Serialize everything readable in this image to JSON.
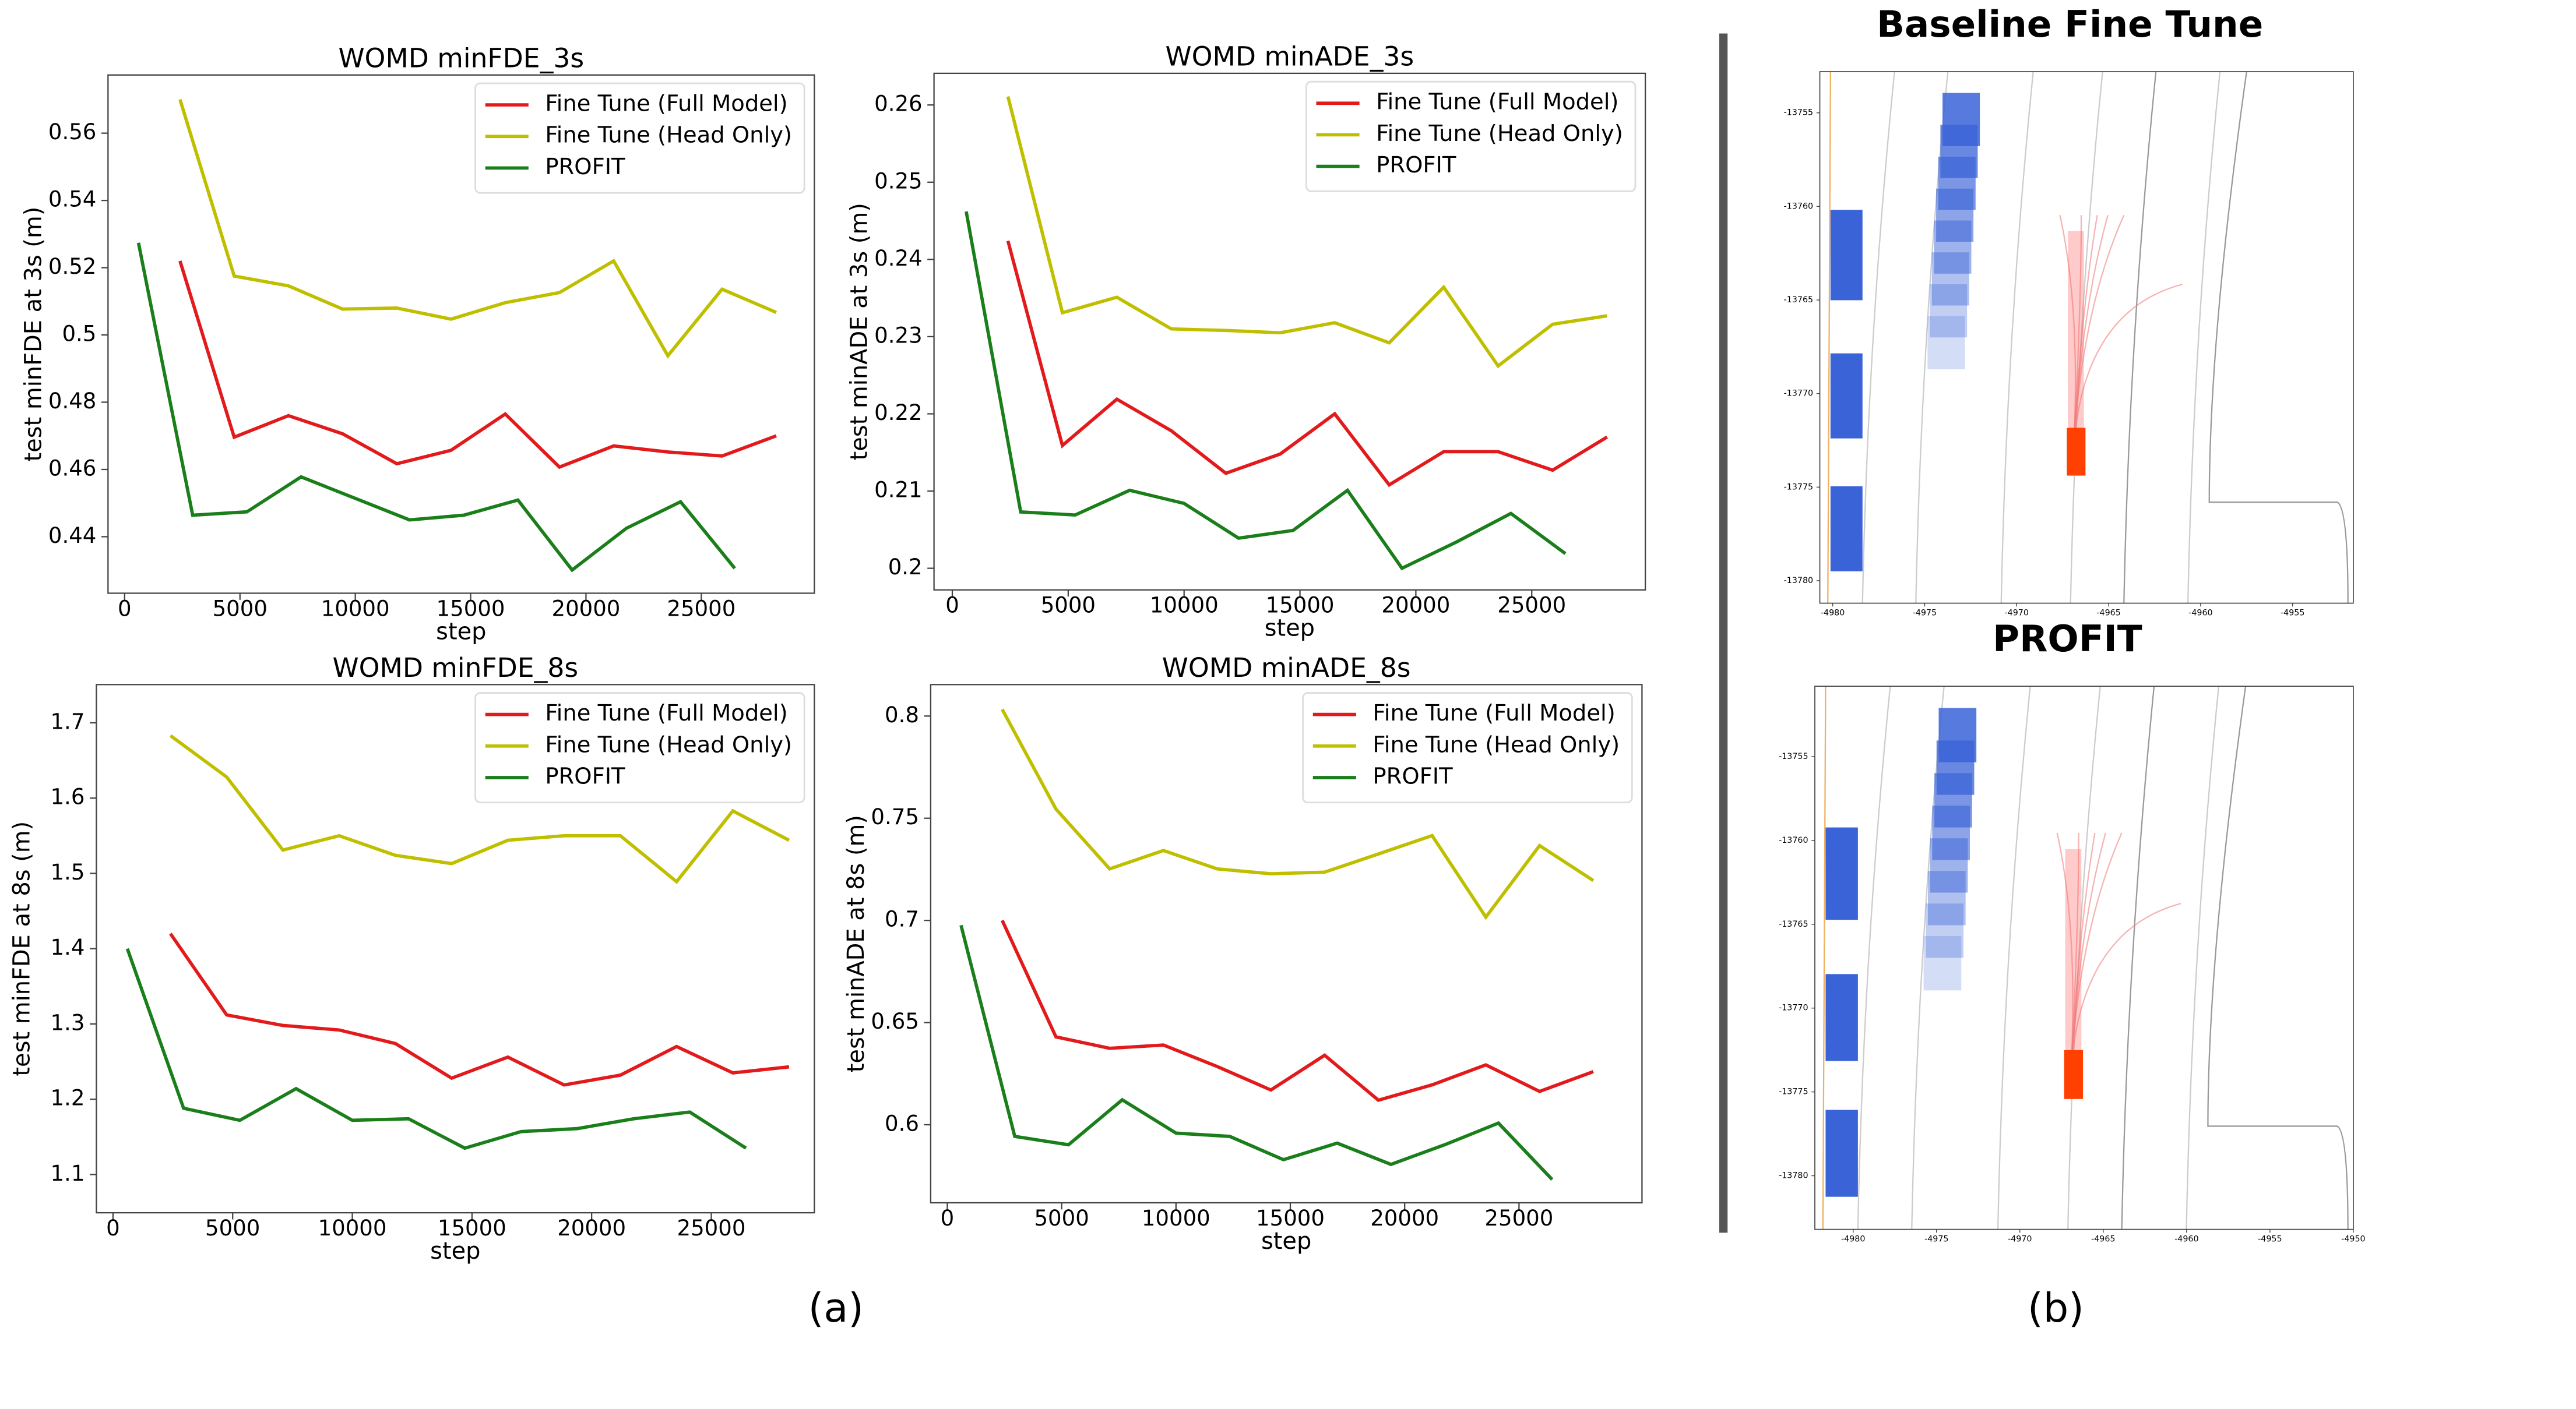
{
  "chart_data": [
    {
      "type": "line",
      "title": "WOMD minFDE_3s",
      "xlabel": "step",
      "ylabel": "test minFDE at 3s (m)",
      "xlim": [
        -720,
        29900
      ],
      "ylim": [
        0.4232,
        0.5773
      ],
      "xticks": [
        0,
        5000,
        10000,
        15000,
        20000,
        25000
      ],
      "yticks": [
        0.44,
        0.46,
        0.48,
        0.5,
        0.52,
        0.54,
        0.56
      ],
      "legend": "upper right",
      "series": [
        {
          "name": "Fine Tune (Full Model)",
          "color": "#e31a1c",
          "x": [
            2400,
            4750,
            7100,
            9450,
            11800,
            14150,
            16500,
            18850,
            21200,
            23550,
            25900,
            28250
          ],
          "values": [
            0.522,
            0.4696,
            0.476,
            0.4706,
            0.4617,
            0.4657,
            0.4765,
            0.4607,
            0.467,
            0.4652,
            0.464,
            0.47
          ]
        },
        {
          "name": "Fine Tune (Head Only)",
          "color": "#bfbf00",
          "x": [
            2400,
            4750,
            7100,
            9450,
            11800,
            14150,
            16500,
            18850,
            21200,
            23550,
            25900,
            28250
          ],
          "values": [
            0.57,
            0.5175,
            0.5146,
            0.5077,
            0.508,
            0.5047,
            0.5096,
            0.5126,
            0.522,
            0.4938,
            0.5136,
            0.5067
          ]
        },
        {
          "name": "PROFIT",
          "color": "#1a7f1a",
          "x": [
            600,
            2950,
            5300,
            7650,
            10000,
            12350,
            14700,
            17050,
            19400,
            21750,
            24100,
            26450
          ],
          "values": [
            0.5274,
            0.4464,
            0.4474,
            0.4578,
            0.4514,
            0.445,
            0.4464,
            0.4509,
            0.4301,
            0.4425,
            0.4504,
            0.4306
          ]
        }
      ]
    },
    {
      "type": "line",
      "title": "WOMD minADE_3s",
      "xlabel": "step",
      "ylabel": "test minADE at 3s (m)",
      "xlim": [
        -790,
        29900
      ],
      "ylim": [
        0.1972,
        0.2641
      ],
      "xticks": [
        0,
        5000,
        10000,
        15000,
        20000,
        25000
      ],
      "yticks": [
        0.2,
        0.21,
        0.22,
        0.23,
        0.24,
        0.25,
        0.26
      ],
      "legend": "upper right",
      "series": [
        {
          "name": "Fine Tune (Full Model)",
          "color": "#e31a1c",
          "x": [
            2400,
            4750,
            7100,
            9450,
            11800,
            14150,
            16500,
            18850,
            21200,
            23550,
            25900,
            28250
          ],
          "values": [
            0.2424,
            0.2159,
            0.2219,
            0.2178,
            0.2123,
            0.2148,
            0.22,
            0.2108,
            0.2151,
            0.2151,
            0.2127,
            0.217
          ]
        },
        {
          "name": "Fine Tune (Head Only)",
          "color": "#bfbf00",
          "x": [
            2400,
            4750,
            7100,
            9450,
            11800,
            14150,
            16500,
            18850,
            21200,
            23550,
            25900,
            28250
          ],
          "values": [
            0.2611,
            0.2331,
            0.2351,
            0.231,
            0.2308,
            0.2305,
            0.2318,
            0.2292,
            0.2364,
            0.2262,
            0.2316,
            0.2327
          ]
        },
        {
          "name": "PROFIT",
          "color": "#1a7f1a",
          "x": [
            600,
            2950,
            5300,
            7650,
            10000,
            12350,
            14700,
            17050,
            19400,
            21750,
            24100,
            26450
          ],
          "values": [
            0.2462,
            0.2073,
            0.2069,
            0.2101,
            0.2084,
            0.2039,
            0.2049,
            0.2101,
            0.2,
            0.2034,
            0.2071,
            0.2019
          ]
        }
      ]
    },
    {
      "type": "line",
      "title": "WOMD minFDE_8s",
      "xlabel": "step",
      "ylabel": "test minFDE at 8s (m)",
      "xlim": [
        -694,
        29306
      ],
      "ylim": [
        1.0492,
        1.7508
      ],
      "xticks": [
        0,
        5000,
        10000,
        15000,
        20000,
        25000
      ],
      "yticks": [
        1.1,
        1.2,
        1.3,
        1.4,
        1.5,
        1.6,
        1.7
      ],
      "legend": "upper right",
      "series": [
        {
          "name": "Fine Tune (Full Model)",
          "color": "#e31a1c",
          "x": [
            2400,
            4750,
            7100,
            9450,
            11800,
            14150,
            16500,
            18850,
            21200,
            23550,
            25900,
            28250
          ],
          "values": [
            1.42,
            1.312,
            1.298,
            1.292,
            1.274,
            1.228,
            1.256,
            1.219,
            1.232,
            1.27,
            1.235,
            1.243
          ]
        },
        {
          "name": "Fine Tune (Head Only)",
          "color": "#bfbf00",
          "x": [
            2400,
            4750,
            7100,
            9450,
            11800,
            14150,
            16500,
            18850,
            21200,
            23550,
            25900,
            28250
          ],
          "values": [
            1.683,
            1.628,
            1.531,
            1.55,
            1.524,
            1.513,
            1.544,
            1.55,
            1.55,
            1.489,
            1.583,
            1.544
          ]
        },
        {
          "name": "PROFIT",
          "color": "#1a7f1a",
          "x": [
            600,
            2950,
            5300,
            7650,
            10000,
            12350,
            14700,
            17050,
            19400,
            21750,
            24100,
            26450
          ],
          "values": [
            1.4,
            1.188,
            1.172,
            1.214,
            1.172,
            1.174,
            1.135,
            1.157,
            1.161,
            1.174,
            1.183,
            1.135
          ]
        }
      ]
    },
    {
      "type": "line",
      "title": "WOMD minADE_8s",
      "xlabel": "step",
      "ylabel": "test minADE at 8s (m)",
      "xlim": [
        -727,
        30378
      ],
      "ylim": [
        0.5618,
        0.8154
      ],
      "xticks": [
        0,
        5000,
        10000,
        15000,
        20000,
        25000
      ],
      "yticks": [
        0.6,
        0.65,
        0.7,
        0.75,
        0.8
      ],
      "legend": "upper right",
      "series": [
        {
          "name": "Fine Tune (Full Model)",
          "color": "#e31a1c",
          "x": [
            2400,
            4750,
            7100,
            9450,
            11800,
            14150,
            16500,
            18850,
            21200,
            23550,
            25900,
            28250
          ],
          "values": [
            0.7,
            0.643,
            0.6374,
            0.639,
            0.6285,
            0.617,
            0.634,
            0.612,
            0.6195,
            0.6293,
            0.6163,
            0.626
          ]
        },
        {
          "name": "Fine Tune (Head Only)",
          "color": "#bfbf00",
          "x": [
            2400,
            4750,
            7100,
            9450,
            11800,
            14150,
            16500,
            18850,
            21200,
            23550,
            25900,
            28250
          ],
          "values": [
            0.8033,
            0.7545,
            0.7252,
            0.7342,
            0.7252,
            0.7228,
            0.7236,
            0.7325,
            0.7415,
            0.7016,
            0.7366,
            0.7195
          ]
        },
        {
          "name": "PROFIT",
          "color": "#1a7f1a",
          "x": [
            600,
            2950,
            5300,
            7650,
            10000,
            12350,
            14700,
            17050,
            19400,
            21750,
            24100,
            26450
          ],
          "values": [
            0.6976,
            0.5943,
            0.5902,
            0.6122,
            0.5959,
            0.5943,
            0.5829,
            0.591,
            0.5806,
            0.5902,
            0.6008,
            0.5732
          ]
        }
      ]
    },
    {
      "type": "scene",
      "title": "Baseline Fine Tune",
      "xlim": [
        -4980.7,
        -4951.7
      ],
      "ylim": [
        -13781.2,
        -13752.8
      ],
      "xticks": [
        -4980,
        -4975,
        -4970,
        -4965,
        -4960,
        -4955
      ],
      "yticks": [
        -13755,
        -13760,
        -13765,
        -13770,
        -13775,
        -13780
      ]
    },
    {
      "type": "scene",
      "title": "PROFIT",
      "xlim": [
        -4982.3,
        -4950
      ],
      "ylim": [
        -13783.2,
        -13750.8
      ],
      "xticks": [
        -4980,
        -4975,
        -4970,
        -4965,
        -4960,
        -4955,
        -4950
      ],
      "yticks": [
        -13755,
        -13760,
        -13765,
        -13770,
        -13775,
        -13780
      ]
    }
  ],
  "panel_labels": [
    "(a)",
    "(b)"
  ]
}
